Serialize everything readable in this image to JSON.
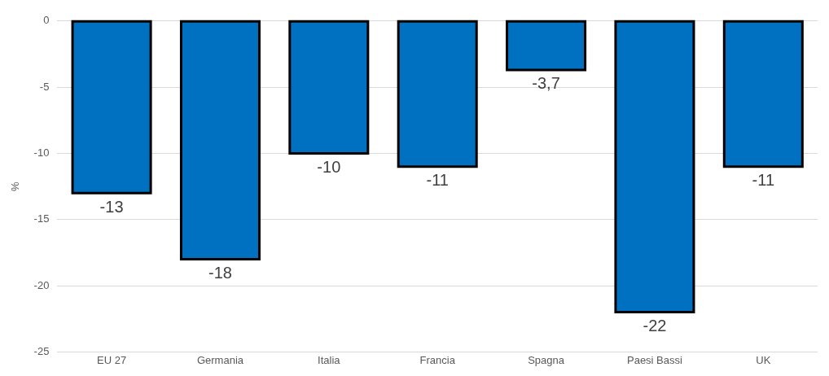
{
  "chart_data": {
    "type": "bar",
    "ylabel": "%",
    "categories": [
      "EU 27",
      "Germania",
      "Italia",
      "Francia",
      "Spagna",
      "Paesi Bassi",
      "UK"
    ],
    "values": [
      -13,
      -18,
      -10,
      -11,
      -3.7,
      -22,
      -11
    ],
    "value_labels": [
      "-13",
      "-18",
      "-10",
      "-11",
      "-3,7",
      "-22",
      "-11"
    ],
    "color": "#0070c0",
    "ylim": [
      -25,
      0
    ],
    "yticks": [
      0,
      -5,
      -10,
      -15,
      -20,
      -25
    ],
    "grid": "y",
    "legend": false
  }
}
